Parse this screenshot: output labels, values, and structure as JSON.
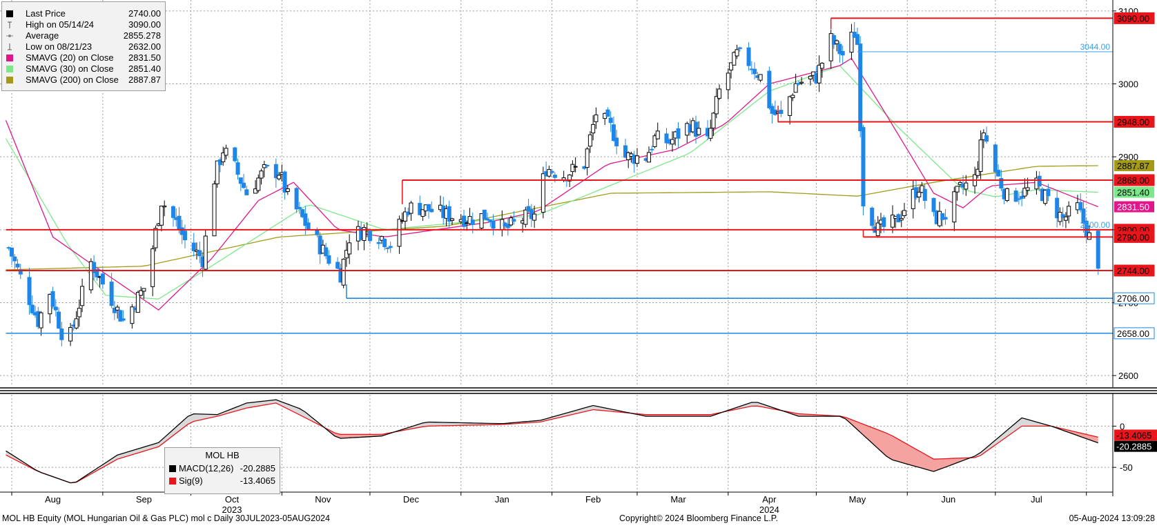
{
  "legend": {
    "items": [
      {
        "label": "Last Price",
        "value": "2740.00",
        "color": "#000000",
        "marker": "square"
      },
      {
        "label": "High on 05/14/24",
        "value": "3090.00",
        "color": "#555555",
        "marker": "high-tick"
      },
      {
        "label": "Average",
        "value": "2855.278",
        "color": "#888888",
        "marker": "average-dot"
      },
      {
        "label": "Low on 08/21/23",
        "value": "2632.00",
        "color": "#555555",
        "marker": "low-tick"
      },
      {
        "label": "SMAVG (20)  on Close",
        "value": "2831.50",
        "color": "#e0168a",
        "marker": "square"
      },
      {
        "label": "SMAVG (30)  on Close",
        "value": "2851.40",
        "color": "#7de88a",
        "marker": "square"
      },
      {
        "label": "SMAVG (200)  on Close",
        "value": "2887.87",
        "color": "#a39a17",
        "marker": "square"
      }
    ]
  },
  "macd_legend": {
    "title": "MOL HB",
    "items": [
      {
        "label": "MACD(12,26)",
        "value": "-20.2885",
        "color": "#000000"
      },
      {
        "label": "Sig(9)",
        "value": "-13.4065",
        "color": "#e8151b"
      }
    ]
  },
  "footer": {
    "left": "MOL HB Equity (MOL Hungarian Oil & Gas PLC) mol c  Daily 30JUL2023-05AUG2024",
    "center": "Copyright© 2024 Bloomberg Finance L.P.",
    "right": "05-Aug-2024 13:09:28"
  },
  "chart_data": [
    {
      "type": "candlestick",
      "title": "",
      "y_axis_position": "right",
      "ylim": [
        2585,
        3115
      ],
      "yticks": [
        "2600",
        "2700",
        "2800",
        "2900",
        "3000",
        "3100"
      ],
      "x_axis": {
        "months": [
          "Aug",
          "Sep",
          "Oct",
          "Nov",
          "Dec",
          "Jan",
          "Feb",
          "Mar",
          "Apr",
          "May",
          "Jun",
          "Jul"
        ],
        "years": [
          "2023",
          "2024"
        ]
      },
      "grid": true,
      "colors": {
        "up": "#000000",
        "down": "#1f86e8",
        "sma20": "#e0168a",
        "sma30": "#7de88a",
        "sma200": "#a39a17",
        "level_red": "#e8151b",
        "level_blue": "#1f86e8"
      },
      "candle_anchors": [
        [
          "2023-07-31",
          2775
        ],
        [
          "2023-08-03",
          2745
        ],
        [
          "2023-08-10",
          2675
        ],
        [
          "2023-08-14",
          2715
        ],
        [
          "2023-08-18",
          2660
        ],
        [
          "2023-08-21",
          2655
        ],
        [
          "2023-08-28",
          2755
        ],
        [
          "2023-09-04",
          2705
        ],
        [
          "2023-09-08",
          2675
        ],
        [
          "2023-09-15",
          2720
        ],
        [
          "2023-09-18",
          2775
        ],
        [
          "2023-09-21",
          2840
        ],
        [
          "2023-09-26",
          2810
        ],
        [
          "2023-09-29",
          2785
        ],
        [
          "2023-10-05",
          2760
        ],
        [
          "2023-10-09",
          2870
        ],
        [
          "2023-10-12",
          2910
        ],
        [
          "2023-10-16",
          2885
        ],
        [
          "2023-10-20",
          2850
        ],
        [
          "2023-10-26",
          2880
        ],
        [
          "2023-10-31",
          2880
        ],
        [
          "2023-11-03",
          2845
        ],
        [
          "2023-11-08",
          2815
        ],
        [
          "2023-11-12",
          2790
        ],
        [
          "2023-11-16",
          2765
        ],
        [
          "2023-11-21",
          2740
        ],
        [
          "2023-11-24",
          2790
        ],
        [
          "2023-11-29",
          2800
        ],
        [
          "2023-12-05",
          2790
        ],
        [
          "2023-12-08",
          2780
        ],
        [
          "2023-12-14",
          2830
        ],
        [
          "2023-12-19",
          2830
        ],
        [
          "2023-12-27",
          2820
        ],
        [
          "2024-01-04",
          2815
        ],
        [
          "2024-01-10",
          2820
        ],
        [
          "2024-01-16",
          2800
        ],
        [
          "2024-01-22",
          2815
        ],
        [
          "2024-01-26",
          2820
        ],
        [
          "2024-01-30",
          2885
        ],
        [
          "2024-02-05",
          2875
        ],
        [
          "2024-02-12",
          2890
        ],
        [
          "2024-02-16",
          2960
        ],
        [
          "2024-02-21",
          2940
        ],
        [
          "2024-02-26",
          2900
        ],
        [
          "2024-03-04",
          2900
        ],
        [
          "2024-03-07",
          2925
        ],
        [
          "2024-03-12",
          2920
        ],
        [
          "2024-03-19",
          2945
        ],
        [
          "2024-03-25",
          2920
        ],
        [
          "2024-03-29",
          2990
        ],
        [
          "2024-04-04",
          3040
        ],
        [
          "2024-04-08",
          3030
        ],
        [
          "2024-04-12",
          3010
        ],
        [
          "2024-04-16",
          2960
        ],
        [
          "2024-04-19",
          2955
        ],
        [
          "2024-04-24",
          3000
        ],
        [
          "2024-05-01",
          3010
        ],
        [
          "2024-05-06",
          3060
        ],
        [
          "2024-05-10",
          3040
        ],
        [
          "2024-05-14",
          3070
        ],
        [
          "2024-05-15",
          3055
        ],
        [
          "2024-05-17",
          2840
        ],
        [
          "2024-05-22",
          2800
        ],
        [
          "2024-05-28",
          2810
        ],
        [
          "2024-05-31",
          2830
        ],
        [
          "2024-06-05",
          2860
        ],
        [
          "2024-06-10",
          2815
        ],
        [
          "2024-06-14",
          2820
        ],
        [
          "2024-06-19",
          2855
        ],
        [
          "2024-06-24",
          2870
        ],
        [
          "2024-06-27",
          2935
        ],
        [
          "2024-07-01",
          2880
        ],
        [
          "2024-07-05",
          2845
        ],
        [
          "2024-07-10",
          2850
        ],
        [
          "2024-07-15",
          2860
        ],
        [
          "2024-07-19",
          2840
        ],
        [
          "2024-07-24",
          2815
        ],
        [
          "2024-07-29",
          2830
        ],
        [
          "2024-08-02",
          2790
        ],
        [
          "2024-08-05",
          2740
        ]
      ],
      "sma20_anchors": [
        [
          "2023-07-30",
          2950
        ],
        [
          "2023-08-15",
          2790
        ],
        [
          "2023-08-31",
          2745
        ],
        [
          "2023-09-20",
          2690
        ],
        [
          "2023-10-08",
          2760
        ],
        [
          "2023-10-24",
          2840
        ],
        [
          "2023-11-05",
          2865
        ],
        [
          "2023-11-20",
          2800
        ],
        [
          "2023-12-06",
          2790
        ],
        [
          "2024-01-10",
          2810
        ],
        [
          "2024-01-27",
          2825
        ],
        [
          "2024-02-20",
          2890
        ],
        [
          "2024-03-14",
          2910
        ],
        [
          "2024-03-31",
          2945
        ],
        [
          "2024-04-15",
          3000
        ],
        [
          "2024-05-09",
          3025
        ],
        [
          "2024-05-13",
          3035
        ],
        [
          "2024-05-26",
          2950
        ],
        [
          "2024-06-10",
          2850
        ],
        [
          "2024-06-20",
          2830
        ],
        [
          "2024-06-29",
          2860
        ],
        [
          "2024-07-15",
          2865
        ],
        [
          "2024-08-05",
          2831.5
        ]
      ],
      "sma30_anchors": [
        [
          "2023-07-30",
          2925
        ],
        [
          "2023-08-20",
          2780
        ],
        [
          "2023-09-02",
          2710
        ],
        [
          "2023-09-20",
          2705
        ],
        [
          "2023-10-08",
          2750
        ],
        [
          "2023-11-10",
          2835
        ],
        [
          "2023-12-06",
          2800
        ],
        [
          "2024-01-27",
          2820
        ],
        [
          "2024-03-19",
          2905
        ],
        [
          "2024-04-15",
          2990
        ],
        [
          "2024-05-09",
          3025
        ],
        [
          "2024-05-29",
          2940
        ],
        [
          "2024-06-20",
          2855
        ],
        [
          "2024-07-01",
          2845
        ],
        [
          "2024-07-15",
          2855
        ],
        [
          "2024-08-05",
          2851.4
        ]
      ],
      "sma200_anchors": [
        [
          "2023-07-30",
          2745
        ],
        [
          "2023-09-15",
          2750
        ],
        [
          "2023-10-31",
          2790
        ],
        [
          "2023-12-27",
          2805
        ],
        [
          "2024-02-21",
          2850
        ],
        [
          "2024-04-15",
          2852
        ],
        [
          "2024-05-15",
          2846
        ],
        [
          "2024-06-10",
          2865
        ],
        [
          "2024-07-15",
          2887
        ],
        [
          "2024-08-05",
          2887.87
        ]
      ],
      "levels": [
        {
          "value": 3090,
          "label": "3090.00",
          "color": "red",
          "from": "2024-05-06"
        },
        {
          "value": 3044,
          "label": "3044.00",
          "color": "blue-thin",
          "from": "2024-05-15"
        },
        {
          "value": 2948,
          "label": "2948.00",
          "color": "red",
          "from": "2024-04-18"
        },
        {
          "value": 2868,
          "label": "2868.00",
          "color": "red",
          "from": "2023-12-12"
        },
        {
          "value": 2800,
          "label": "2800.00",
          "color": "red",
          "from": "2023-07-30"
        },
        {
          "value": 2790,
          "label": "2790.00",
          "color": "red",
          "from": "2024-05-17"
        },
        {
          "value": 2744,
          "label": "2744.00",
          "color": "red",
          "from": "2023-07-30"
        },
        {
          "value": 2706,
          "label": "2706.00",
          "color": "blue",
          "from": "2023-11-23"
        },
        {
          "value": 2658,
          "label": "2658.00",
          "color": "blue",
          "from": "2023-07-30"
        }
      ],
      "last_value_labels": [
        {
          "label": "2887.87",
          "value": 2887.87,
          "bg": "#a39a17",
          "fg": "#000000"
        },
        {
          "label": "2851.40",
          "value": 2851.4,
          "bg": "#7de88a",
          "fg": "#000000"
        },
        {
          "label": "2831.50",
          "value": 2831.5,
          "bg": "#e0168a",
          "fg": "#ffffff"
        }
      ],
      "annotations": [
        {
          "text": "3044.00",
          "value": 3044
        },
        {
          "text": "2800.00",
          "value": 2800
        }
      ]
    },
    {
      "type": "line",
      "title": "MACD",
      "ylim": [
        -80,
        38
      ],
      "yticks": [
        "0",
        "-50"
      ],
      "series": [
        {
          "name": "MACD(12,26)",
          "color": "#000000",
          "points": [
            [
              "2023-07-30",
              -30
            ],
            [
              "2023-08-10",
              -55
            ],
            [
              "2023-08-22",
              -70
            ],
            [
              "2023-09-06",
              -35
            ],
            [
              "2023-09-20",
              -20
            ],
            [
              "2023-10-01",
              15
            ],
            [
              "2023-10-10",
              14
            ],
            [
              "2023-10-20",
              28
            ],
            [
              "2023-10-30",
              32
            ],
            [
              "2023-11-08",
              20
            ],
            [
              "2023-11-20",
              -15
            ],
            [
              "2023-12-05",
              -12
            ],
            [
              "2023-12-20",
              5
            ],
            [
              "2024-01-15",
              3
            ],
            [
              "2024-01-28",
              7
            ],
            [
              "2024-02-15",
              25
            ],
            [
              "2024-03-04",
              12
            ],
            [
              "2024-03-26",
              12
            ],
            [
              "2024-04-10",
              30
            ],
            [
              "2024-04-25",
              12
            ],
            [
              "2024-05-10",
              12
            ],
            [
              "2024-05-26",
              -40
            ],
            [
              "2024-06-10",
              -55
            ],
            [
              "2024-06-25",
              -35
            ],
            [
              "2024-07-10",
              10
            ],
            [
              "2024-07-20",
              0
            ],
            [
              "2024-08-05",
              -20.2885
            ]
          ]
        },
        {
          "name": "Sig(9)",
          "color": "#e8151b",
          "points": [
            [
              "2023-07-30",
              -35
            ],
            [
              "2023-08-10",
              -55
            ],
            [
              "2023-08-22",
              -70
            ],
            [
              "2023-09-06",
              -40
            ],
            [
              "2023-09-20",
              -25
            ],
            [
              "2023-10-01",
              5
            ],
            [
              "2023-10-10",
              12
            ],
            [
              "2023-10-20",
              22
            ],
            [
              "2023-10-30",
              28
            ],
            [
              "2023-11-08",
              12
            ],
            [
              "2023-11-20",
              -10
            ],
            [
              "2023-12-05",
              -10
            ],
            [
              "2023-12-20",
              0
            ],
            [
              "2024-01-15",
              2
            ],
            [
              "2024-01-28",
              5
            ],
            [
              "2024-02-15",
              20
            ],
            [
              "2024-03-04",
              14
            ],
            [
              "2024-03-26",
              14
            ],
            [
              "2024-04-10",
              25
            ],
            [
              "2024-04-25",
              15
            ],
            [
              "2024-05-10",
              12
            ],
            [
              "2024-05-26",
              -10
            ],
            [
              "2024-06-10",
              -40
            ],
            [
              "2024-06-25",
              -38
            ],
            [
              "2024-07-10",
              0
            ],
            [
              "2024-07-20",
              0
            ],
            [
              "2024-08-05",
              -13.4065
            ]
          ]
        }
      ],
      "last_value_labels": [
        {
          "label": "-13.4065",
          "value": -13.4065,
          "bg": "#e8151b",
          "fg": "#000000"
        },
        {
          "label": "-20.2885",
          "value": -20.2885,
          "bg": "#000000",
          "fg": "#ffffff"
        }
      ]
    }
  ]
}
